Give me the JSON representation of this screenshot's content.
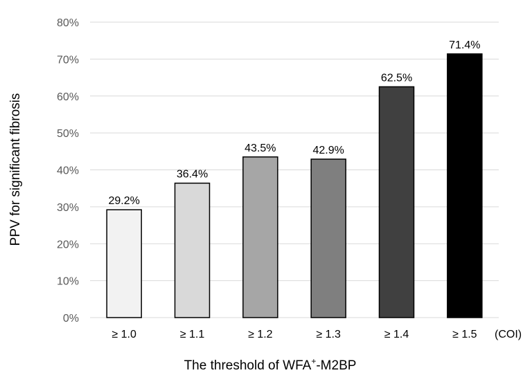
{
  "chart_data": {
    "type": "bar",
    "categories": [
      "≥ 1.0",
      "≥ 1.1",
      "≥ 1.2",
      "≥ 1.3",
      "≥ 1.4",
      "≥ 1.5"
    ],
    "values": [
      29.2,
      36.4,
      43.5,
      42.9,
      62.5,
      71.4
    ],
    "data_labels": [
      "29.2%",
      "36.4%",
      "43.5%",
      "42.9%",
      "62.5%",
      "71.4%"
    ],
    "bar_colors": [
      "#f2f2f2",
      "#d9d9d9",
      "#a6a6a6",
      "#7f7f7f",
      "#404040",
      "#000000"
    ],
    "title": "",
    "xlabel_main": "The threshold of WFA",
    "xlabel_sup": "+",
    "xlabel_rest": "-M2BP",
    "x_unit": "(COI)",
    "ylabel": "PPV for significant fibrosis",
    "ylim": [
      0,
      80
    ],
    "yticks": [
      0,
      10,
      20,
      30,
      40,
      50,
      60,
      70,
      80
    ],
    "ytick_labels": [
      "0%",
      "10%",
      "20%",
      "30%",
      "40%",
      "50%",
      "60%",
      "70%",
      "80%"
    ],
    "grid": true,
    "legend": "none"
  }
}
